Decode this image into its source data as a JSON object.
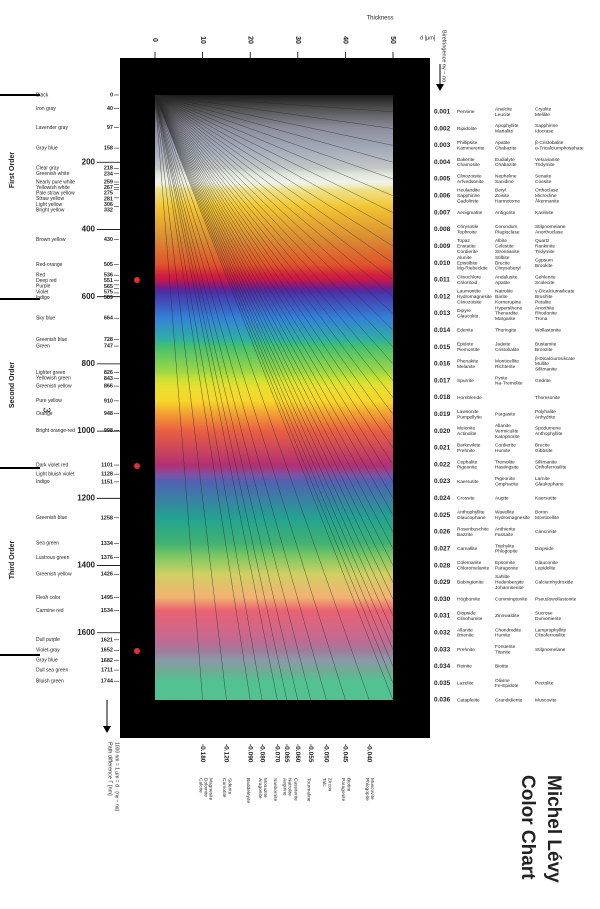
{
  "title": {
    "line1": "Michel Lévy",
    "line2": "Color Chart"
  },
  "thickness_axis": {
    "label": "Thickness",
    "unit": "d [µm]",
    "lim": [
      0,
      50
    ],
    "ticks": [
      0,
      10,
      20,
      30,
      40,
      50
    ]
  },
  "retardation_axis": {
    "label": "Path difference Γ [nm]",
    "note": "1000 nm = 1 µm = d · (nγ − nα)",
    "lim": [
      0,
      1800
    ],
    "ticks": [
      200,
      400,
      600,
      800,
      1000,
      1200,
      1400,
      1600
    ]
  },
  "birefringence_label": "Birefringence nγ − nα",
  "orders": [
    "First Order",
    "Second Order",
    "Third Order"
  ],
  "side_glyph": "3",
  "interference_colors": [
    {
      "name": "Black",
      "retardation": 0,
      "color": "#1a1a1a"
    },
    {
      "name": "Iron gray",
      "retardation": 40,
      "color": "#505050"
    },
    {
      "name": "Lavender gray",
      "retardation": 97,
      "color": "#8c8c9c"
    },
    {
      "name": "Gray blue",
      "retardation": 158,
      "color": "#a2aab8"
    },
    {
      "name": "Clear gray",
      "retardation": 218,
      "color": "#c4c8c8"
    },
    {
      "name": "Greenish white",
      "retardation": 234,
      "color": "#dde6da"
    },
    {
      "name": "Nearly pure white",
      "retardation": 259,
      "color": "#f2f2ea"
    },
    {
      "name": "Yellowish white",
      "retardation": 267,
      "color": "#f2efd0"
    },
    {
      "name": "Pale straw yellow",
      "retardation": 275,
      "color": "#efe8a8"
    },
    {
      "name": "Straw yellow",
      "retardation": 281,
      "color": "#efe08c"
    },
    {
      "name": "Light yellow",
      "retardation": 306,
      "color": "#f0d660"
    },
    {
      "name": "Bright yellow",
      "retardation": 332,
      "color": "#f2c632"
    },
    {
      "name": "Brown yellow",
      "retardation": 430,
      "color": "#d98a32"
    },
    {
      "name": "Red-orange",
      "retardation": 505,
      "color": "#e0522c"
    },
    {
      "name": "Red",
      "retardation": 536,
      "color": "#d2203e"
    },
    {
      "name": "Deep red",
      "retardation": 551,
      "color": "#c01852"
    },
    {
      "name": "Purple",
      "retardation": 565,
      "color": "#8e1a78"
    },
    {
      "name": "Violet",
      "retardation": 575,
      "color": "#6a2090"
    },
    {
      "name": "Indigo",
      "retardation": 589,
      "color": "#4a32aa"
    },
    {
      "name": "Sky blue",
      "retardation": 664,
      "color": "#3282d8"
    },
    {
      "name": "Greenish blue",
      "retardation": 728,
      "color": "#30b0a2"
    },
    {
      "name": "Green",
      "retardation": 747,
      "color": "#44c070"
    },
    {
      "name": "Lighter green",
      "retardation": 826,
      "color": "#a2d842"
    },
    {
      "name": "Yellowish green",
      "retardation": 843,
      "color": "#c8e032"
    },
    {
      "name": "Greenish yellow",
      "retardation": 866,
      "color": "#e6e032"
    },
    {
      "name": "Pure yellow",
      "retardation": 910,
      "color": "#f8d62a"
    },
    {
      "name": "Orange",
      "retardation": 948,
      "color": "#f2a032"
    },
    {
      "name": "Bright orange-red",
      "retardation": 998,
      "color": "#ea6042"
    },
    {
      "name": "Dark violet red",
      "retardation": 1101,
      "color": "#b23072"
    },
    {
      "name": "Light bluish violet",
      "retardation": 1128,
      "color": "#8050a2"
    },
    {
      "name": "Indigo",
      "retardation": 1151,
      "color": "#5062b2"
    },
    {
      "name": "Greenish blue",
      "retardation": 1258,
      "color": "#22a292"
    },
    {
      "name": "Sea green",
      "retardation": 1334,
      "color": "#42b272"
    },
    {
      "name": "Lustrous green",
      "retardation": 1376,
      "color": "#82c862"
    },
    {
      "name": "Greenish yellow",
      "retardation": 1426,
      "color": "#d0d062"
    },
    {
      "name": "Flesh color",
      "retardation": 1495,
      "color": "#f2b272"
    },
    {
      "name": "Carmine red",
      "retardation": 1534,
      "color": "#ea6272"
    },
    {
      "name": "Dull purple",
      "retardation": 1621,
      "color": "#c26a92"
    },
    {
      "name": "Violet-gray",
      "retardation": 1652,
      "color": "#a27a9a"
    },
    {
      "name": "Gray blue",
      "retardation": 1682,
      "color": "#8a9aaa"
    },
    {
      "name": "Dull sea green",
      "retardation": 1711,
      "color": "#72aa92"
    },
    {
      "name": "Bluish green",
      "retardation": 1744,
      "color": "#52c292"
    }
  ],
  "birefringence": [
    {
      "value": 0.001,
      "label": "0.001",
      "minerals": [
        [
          "Pennine"
        ],
        [
          "Analcite",
          "Leucite"
        ],
        [
          "Cryolite",
          "Melilite"
        ]
      ]
    },
    {
      "value": 0.002,
      "label": "0.002",
      "minerals": [
        [
          "Ripidolite"
        ],
        [
          "Apophyllite",
          "Marialite"
        ],
        [
          "Sapphirine",
          "Idocrase"
        ]
      ]
    },
    {
      "value": 0.003,
      "label": "0.003",
      "minerals": [
        [
          "Phillipsite",
          "Kämmererite"
        ],
        [
          "Apatite",
          "Chabazite"
        ],
        [
          "β-Cristobalite",
          "α-Tricalciumphosphate"
        ]
      ]
    },
    {
      "value": 0.004,
      "label": "0.004",
      "minerals": [
        [
          "Bakerite",
          "Chamosite"
        ],
        [
          "Eudialyte",
          "Chabazite"
        ],
        [
          "Vesuvianite",
          "Tridymite"
        ]
      ]
    },
    {
      "value": 0.005,
      "label": "0.005",
      "minerals": [
        [
          "Clinozoisite",
          "Arfvedsonite"
        ],
        [
          "Nepheline",
          "Sanidine"
        ],
        [
          "Senaite",
          "Coesite"
        ]
      ]
    },
    {
      "value": 0.006,
      "label": "0.006",
      "minerals": [
        [
          "Heulandite",
          "Sapphirine",
          "Gadolinite"
        ],
        [
          "Beryl",
          "Zoisite",
          "Harmotome"
        ],
        [
          "Orthoclase",
          "Microcline",
          "Åkermanite"
        ]
      ]
    },
    {
      "value": 0.007,
      "label": "0.007",
      "minerals": [
        [
          "Aenigmatite"
        ],
        [
          "Antigorite"
        ],
        [
          "Kaolinite"
        ]
      ]
    },
    {
      "value": 0.008,
      "label": "0.008",
      "minerals": [
        [
          "Chrysotile",
          "Tephroite"
        ],
        [
          "Corundum",
          "Plagioclase"
        ],
        [
          "Stilpnomelane",
          "Anorthoclase"
        ]
      ]
    },
    {
      "value": 0.009,
      "label": "0.009",
      "minerals": [
        [
          "Topaz",
          "Enstatite",
          "Cordierite"
        ],
        [
          "Albite",
          "Celestite",
          "Strontianite"
        ],
        [
          "Quartz",
          "Rankinite",
          "Tridymite"
        ]
      ]
    },
    {
      "value": 0.01,
      "label": "0.010",
      "minerals": [
        [
          "Alunite",
          "Epistilbite",
          "Mg-Riebeckite"
        ],
        [
          "Stilbite",
          "Brucite",
          "Chrysoberyl"
        ],
        [
          "Gypsum",
          "Brookite"
        ]
      ]
    },
    {
      "value": 0.011,
      "label": "0.011",
      "minerals": [
        [
          "Clinochlore",
          "Chloritoid"
        ],
        [
          "Andalusite",
          "Apatite"
        ],
        [
          "Gehlenite",
          "Scolecite"
        ]
      ]
    },
    {
      "value": 0.012,
      "label": "0.012",
      "minerals": [
        [
          "Laumontite",
          "Hydromagnesite",
          "Clinozoisite"
        ],
        [
          "Natrolite",
          "Barite",
          "Kornerupine"
        ],
        [
          "γ-Dicalciumsilicate",
          "Brushite",
          "Petalite"
        ]
      ]
    },
    {
      "value": 0.013,
      "label": "0.013",
      "minerals": [
        [
          "Dipyre",
          "Glaucolite"
        ],
        [
          "Hypersthene",
          "Thenardite",
          "Margarite"
        ],
        [
          "Anorthite",
          "Rhodonite",
          "Trona"
        ]
      ]
    },
    {
      "value": 0.014,
      "label": "0.014",
      "minerals": [
        [
          "Edenite"
        ],
        [
          "Thuringite"
        ],
        [
          "Wollastonite"
        ]
      ]
    },
    {
      "value": 0.015,
      "label": "0.015",
      "minerals": [
        [
          "Epidote",
          "Piemontite"
        ],
        [
          "Jadeite",
          "Cristobalite"
        ],
        [
          "Bustamite",
          "Bronzite"
        ]
      ]
    },
    {
      "value": 0.016,
      "label": "0.016",
      "minerals": [
        [
          "Phenakite",
          "Melanite"
        ],
        [
          "Monticellite",
          "Richterite"
        ],
        [
          "β-Dicalciumsilicate",
          "Mullite",
          "Sillimanite"
        ]
      ]
    },
    {
      "value": 0.017,
      "label": "0.017",
      "minerals": [
        [
          "Spurrite"
        ],
        [
          "Pyrite",
          "Na-Tremolite"
        ],
        [
          "Gedrite"
        ]
      ]
    },
    {
      "value": 0.018,
      "label": "0.018",
      "minerals": [
        [
          "Hornblende"
        ],
        [],
        [
          "Thomsonite"
        ]
      ]
    },
    {
      "value": 0.019,
      "label": "0.019",
      "minerals": [
        [
          "Lawsonite",
          "Pumpellyite"
        ],
        [
          "Pargasite"
        ],
        [
          "Polyhalite",
          "Anhydrite"
        ]
      ]
    },
    {
      "value": 0.02,
      "label": "0.020",
      "minerals": [
        [
          "Meionite",
          "Actinolite"
        ],
        [
          "Allanite",
          "Vermiculite",
          "Katophorite"
        ],
        [
          "Spodumene",
          "Anthophyllite"
        ]
      ]
    },
    {
      "value": 0.021,
      "label": "0.021",
      "minerals": [
        [
          "Barkevikite",
          "Prehnite"
        ],
        [
          "Cordierite",
          "Humite"
        ],
        [
          "Brucite",
          "Gibbsite"
        ]
      ]
    },
    {
      "value": 0.022,
      "label": "0.022",
      "minerals": [
        [
          "Cephalite",
          "Pigeonite"
        ],
        [
          "Tremolite",
          "Hastingsite"
        ],
        [
          "Sillimanite",
          "Orthoferrosilite"
        ]
      ]
    },
    {
      "value": 0.023,
      "label": "0.023",
      "minerals": [
        [
          "Kaersutite"
        ],
        [
          "Pigeonite",
          "Omphacite"
        ],
        [
          "Larnite",
          "Glaukophane"
        ]
      ]
    },
    {
      "value": 0.024,
      "label": "0.024",
      "minerals": [
        [
          "Crossite"
        ],
        [
          "Augite"
        ],
        [
          "Kaersutite"
        ]
      ]
    },
    {
      "value": 0.025,
      "label": "0.025",
      "minerals": [
        [
          "Anthophyllite",
          "Glaucophane"
        ],
        [
          "Wavellite",
          "Hydromagnesite"
        ],
        [
          "Boron",
          "Monticellite"
        ]
      ]
    },
    {
      "value": 0.026,
      "label": "0.026",
      "minerals": [
        [
          "Rosenbuschite",
          "Bazzite"
        ],
        [
          "Anthierite",
          "Fassaite"
        ],
        [
          "Cancrinite"
        ]
      ]
    },
    {
      "value": 0.027,
      "label": "0.027",
      "minerals": [
        [
          "Carnallite"
        ],
        [
          "Triphylite",
          "Phlogopite"
        ],
        [
          "Diopside"
        ]
      ]
    },
    {
      "value": 0.028,
      "label": "0.028",
      "minerals": [
        [
          "Colemanite",
          "Chloromelanite"
        ],
        [
          "Epsomite",
          "Paragonite"
        ],
        [
          "Glauconite",
          "Lepidolite"
        ]
      ]
    },
    {
      "value": 0.029,
      "label": "0.029",
      "minerals": [
        [
          "Babingtonite"
        ],
        [
          "Sahlite",
          "Hedenbergite",
          "Johannsenite"
        ],
        [
          "Calciumhydroxide"
        ]
      ]
    },
    {
      "value": 0.03,
      "label": "0.030",
      "minerals": [
        [
          "Högbomite"
        ],
        [
          "Cummingtonite"
        ],
        [
          "Pseudowollastonite"
        ]
      ]
    },
    {
      "value": 0.031,
      "label": "0.031",
      "minerals": [
        [
          "Diopside",
          "Clinohumite"
        ],
        [
          "Zinnwaldite"
        ],
        [
          "Sucrose",
          "Dumortierite"
        ]
      ]
    },
    {
      "value": 0.032,
      "label": "0.032",
      "minerals": [
        [
          "Allanite",
          "Ilmenite"
        ],
        [
          "Chondrodite",
          "Humite"
        ],
        [
          "Lamprophyllite",
          "Clinoferrosilite"
        ]
      ]
    },
    {
      "value": 0.033,
      "label": "0.033",
      "minerals": [
        [
          "Prehnite"
        ],
        [
          "Forsterite",
          "Titanite"
        ],
        [
          "Stilpnomelane"
        ]
      ]
    },
    {
      "value": 0.034,
      "label": "0.034",
      "minerals": [
        [
          "Reinite"
        ],
        [
          "Biotite"
        ],
        []
      ]
    },
    {
      "value": 0.035,
      "label": "0.035",
      "minerals": [
        [
          "Lazulite"
        ],
        [
          "Olivine",
          "Fe-Epidote"
        ],
        [
          "Pectolite"
        ]
      ]
    },
    {
      "value": 0.036,
      "label": "0.036",
      "minerals": [
        [
          "Catapleiite"
        ],
        [
          "Grandidierite"
        ],
        [
          "Muscovite"
        ]
      ]
    }
  ],
  "birefringence_high": [
    {
      "value": -0.04,
      "label": "-0.040",
      "minerals": [
        "Phlogopite",
        "Muscovite"
      ]
    },
    {
      "value": -0.045,
      "label": "-0.045",
      "minerals": [
        "Paragonite",
        "Biotite"
      ]
    },
    {
      "value": -0.05,
      "label": "-0.050",
      "minerals": [
        "Talc",
        "Zircon"
      ]
    },
    {
      "value": -0.055,
      "label": "-0.055",
      "minerals": [
        "Tourmaline"
      ]
    },
    {
      "value": -0.06,
      "label": "-0.060",
      "minerals": [
        "Cassiterite"
      ]
    },
    {
      "value": -0.065,
      "label": "-0.065",
      "minerals": [
        "Aegirine",
        "Natrolite"
      ]
    },
    {
      "value": -0.07,
      "label": "-0.070",
      "minerals": [
        "Sanbornite"
      ]
    },
    {
      "value": -0.08,
      "label": "-0.080",
      "minerals": [
        "Aragonite",
        "Monazite"
      ]
    },
    {
      "value": -0.09,
      "label": "-0.090",
      "minerals": [
        "Baddeleyite"
      ]
    },
    {
      "value": -0.12,
      "label": "-0.120",
      "minerals": [
        "Carnotite",
        "Siderite"
      ]
    },
    {
      "value": -0.18,
      "label": "-0.180",
      "minerals": [
        "Calcite",
        "Dolomite",
        "Magnesite"
      ]
    }
  ]
}
